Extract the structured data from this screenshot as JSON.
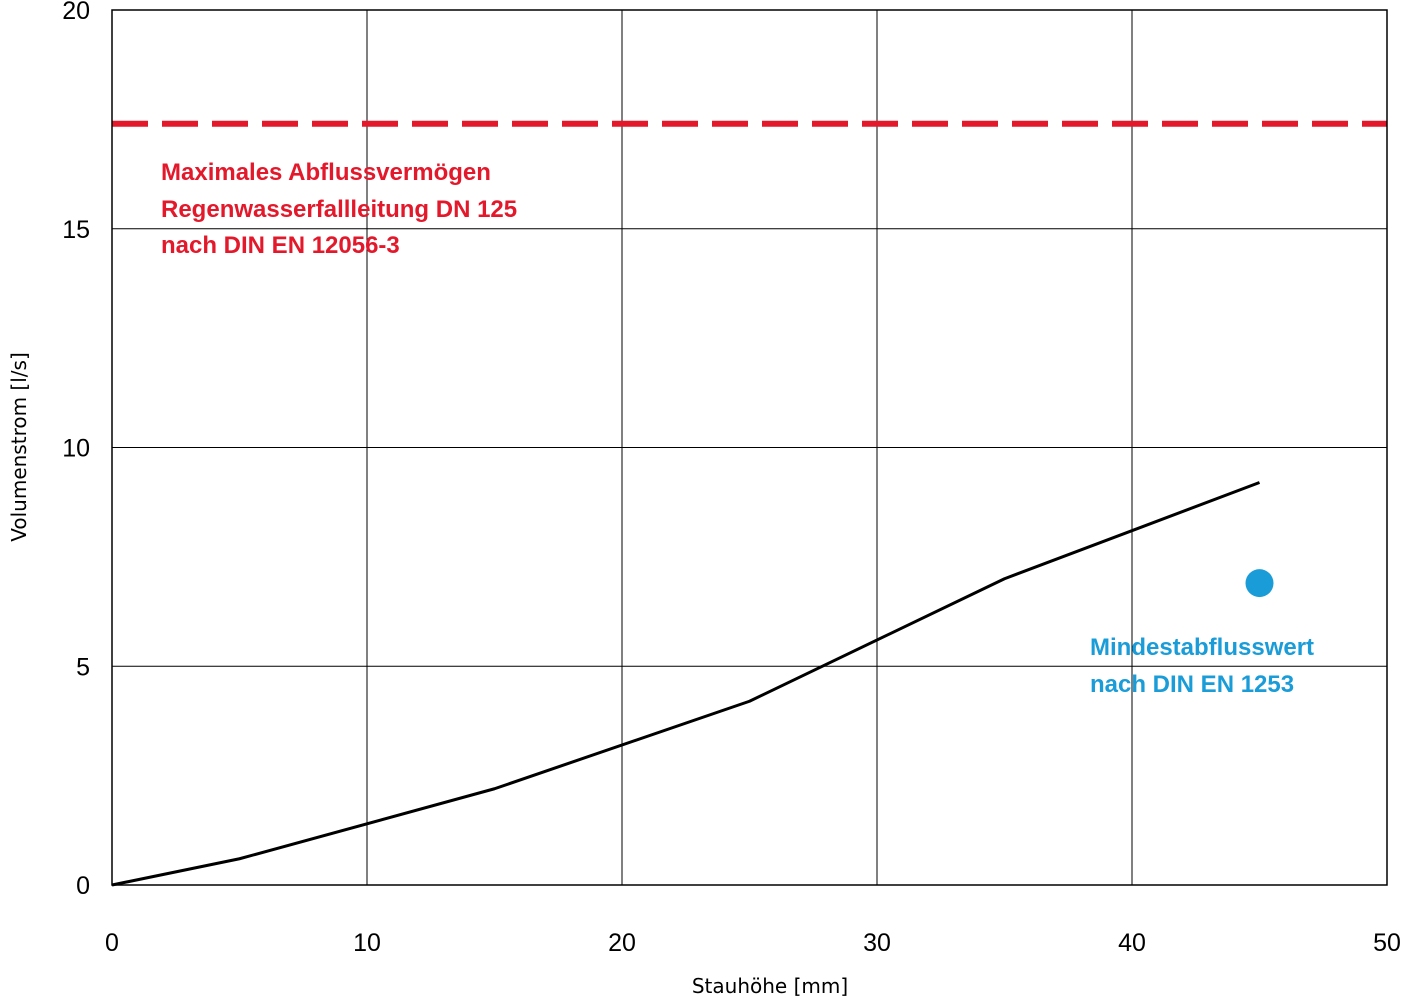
{
  "chart_data": {
    "type": "line",
    "xlabel": "Stauhöhe [mm]",
    "ylabel": "Volumenstrom [l/s]",
    "xlim": [
      0,
      50
    ],
    "ylim": [
      0,
      20
    ],
    "x_ticks": [
      0,
      10,
      20,
      30,
      40,
      50
    ],
    "y_ticks": [
      0,
      5,
      10,
      15,
      20
    ],
    "grid": true,
    "series": [
      {
        "x": [
          0,
          5,
          15,
          25,
          35,
          45
        ],
        "y": [
          0,
          0.6,
          2.2,
          4.2,
          7.0,
          9.2
        ],
        "color": "#000000"
      }
    ],
    "reference_line": {
      "y": 17.4,
      "color": "#E3192B",
      "style": "dashed",
      "label_lines": [
        "Maximales Abflussvermögen",
        "Regenwasserfallleitung DN 125",
        "nach DIN EN 12056-3"
      ]
    },
    "reference_point": {
      "x": 45,
      "y": 6.9,
      "color": "#1A9CD8",
      "label_lines": [
        "Mindestabflusswert",
        "nach DIN EN 1253"
      ]
    }
  }
}
